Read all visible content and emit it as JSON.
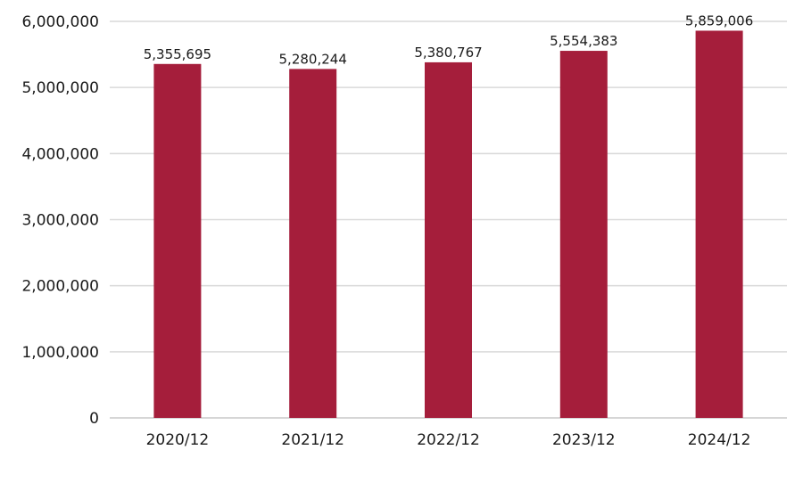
{
  "chart_data": {
    "type": "bar",
    "title": "",
    "xlabel": "",
    "ylabel": "",
    "categories": [
      "2020/12",
      "2021/12",
      "2022/12",
      "2023/12",
      "2024/12"
    ],
    "values": [
      5355695,
      5280244,
      5380767,
      5554383,
      5859006
    ],
    "data_labels": [
      "5,355,695",
      "5,280,244",
      "5,380,767",
      "5,554,383",
      "5,859,006"
    ],
    "ylim": [
      0,
      6000000
    ],
    "yticks": [
      0,
      1000000,
      2000000,
      3000000,
      4000000,
      5000000,
      6000000
    ],
    "ytick_labels": [
      "0",
      "1,000,000",
      "2,000,000",
      "3,000,000",
      "4,000,000",
      "5,000,000",
      "6,000,000"
    ],
    "grid": true,
    "legend": "none",
    "bar_color": "#a51e3b"
  }
}
